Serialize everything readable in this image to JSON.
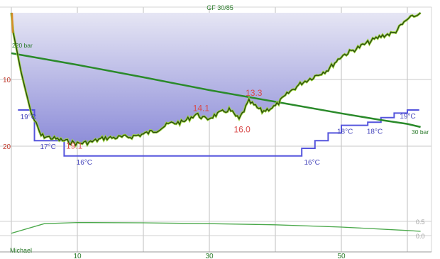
{
  "chart_data": {
    "type": "line",
    "title": "GF 30/85",
    "diver": "Michael",
    "x_axis": {
      "unit": "min",
      "range": [
        0,
        63
      ],
      "ticks": [
        10,
        30,
        50
      ],
      "grid": [
        0,
        10,
        20,
        30,
        40,
        50,
        60
      ]
    },
    "depth_axis": {
      "unit": "m",
      "range": [
        0,
        35
      ],
      "ticks": [
        10,
        20
      ],
      "inverted": true
    },
    "series": [
      {
        "key": "depth",
        "color": "#2a4a10",
        "x": [
          0,
          0.3,
          1.5,
          3,
          4.5,
          8,
          10,
          12,
          14,
          16,
          18,
          20,
          22,
          24,
          26,
          28,
          29.5,
          31,
          33,
          34.5,
          36,
          38,
          40,
          42,
          44,
          46,
          48,
          50,
          52,
          54,
          56,
          58,
          60,
          61.5,
          62
        ],
        "y": [
          0,
          3,
          9,
          15,
          18.4,
          19.2,
          19.6,
          19.4,
          18.8,
          18.7,
          18.6,
          18.2,
          17.6,
          16.6,
          16.4,
          15.2,
          16.0,
          15.3,
          14.5,
          16.0,
          13.3,
          14.8,
          14.0,
          12.0,
          10.5,
          9.5,
          8.5,
          6.5,
          5.5,
          4.5,
          3.5,
          3.0,
          1.0,
          0.4,
          0
        ]
      },
      {
        "key": "temperature",
        "color": "#5555dd",
        "x": [
          1,
          3,
          3.5,
          4.5,
          6,
          8,
          10,
          12,
          20,
          28,
          30,
          34,
          36,
          42,
          44,
          46,
          48,
          50,
          52,
          54,
          56,
          58,
          60,
          61,
          61.8
        ],
        "y": [
          19,
          19,
          17,
          17,
          17,
          16,
          16,
          16,
          16,
          16,
          16,
          16,
          16,
          16,
          16.5,
          17,
          17.5,
          18,
          18,
          18.2,
          18.5,
          18.8,
          19,
          19,
          19
        ],
        "labels": [
          {
            "x": 2,
            "y": 19,
            "text": "19°C"
          },
          {
            "x": 5,
            "y": 17,
            "text": "17°C"
          },
          {
            "x": 10.5,
            "y": 16,
            "text": "16°C"
          },
          {
            "x": 45,
            "y": 16,
            "text": "16°C"
          },
          {
            "x": 50,
            "y": 18,
            "text": "18°C"
          },
          {
            "x": 54.5,
            "y": 18,
            "text": "18°C"
          },
          {
            "x": 59.5,
            "y": 19,
            "text": "19°C"
          }
        ]
      },
      {
        "key": "pressure",
        "color": "#2a8a2a",
        "x": [
          0,
          10,
          20,
          30,
          40,
          50,
          56,
          60,
          62
        ],
        "y": [
          220,
          190,
          158,
          125,
          95,
          65,
          48,
          38,
          30
        ],
        "start_label": "220 bar",
        "end_label": "30 bar"
      },
      {
        "key": "gradient",
        "color": "#4aa84a",
        "x": [
          0,
          5,
          10,
          20,
          30,
          40,
          50,
          60,
          62
        ],
        "y": [
          0.08,
          0.42,
          0.46,
          0.45,
          0.42,
          0.38,
          0.3,
          0.18,
          0.15
        ],
        "ticks": [
          0.5,
          0.0
        ]
      }
    ],
    "annotations": [
      {
        "x": 29,
        "y": 14.1,
        "text": "14.1"
      },
      {
        "x": 37,
        "y": 13.3,
        "text": "13.3"
      },
      {
        "x": 35,
        "y": 16.0,
        "text": "16.0"
      },
      {
        "x": 10,
        "y": 19.1,
        "text": "19.1"
      }
    ],
    "grid": true
  }
}
